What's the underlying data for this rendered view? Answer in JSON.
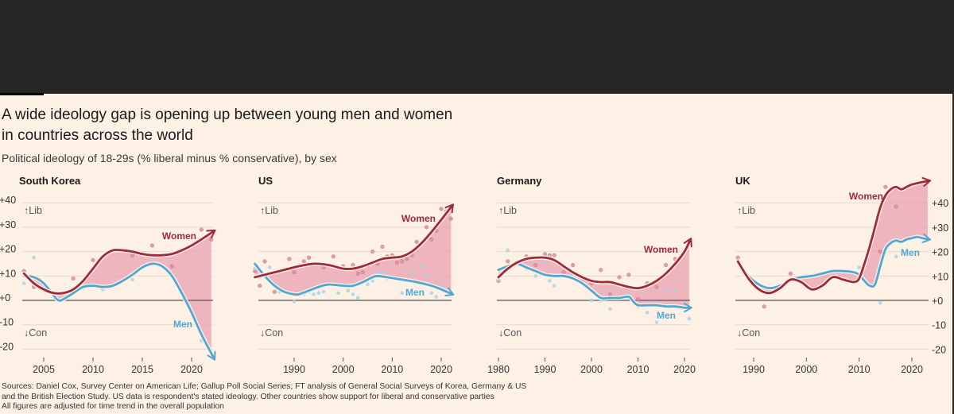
{
  "header": {
    "title_line1": "A wide ideology gap is opening up between young men and women",
    "title_line2": "in countries across the world",
    "subtitle": "Political ideology of 18-29s (% liberal minus % conservative), by sex"
  },
  "footnote": {
    "line1": "Sources: Daniel Cox, Survey Center on American Life; Gallup Poll Social Series; FT analysis of General Social Surveys of Korea, Germany & US",
    "line2": "and the British Election Study. US data is respondent's stated ideology. Other countries show support for liberal and conservative parties",
    "line3": "All figures are adjusted for time trend in the overall population"
  },
  "colors": {
    "women": "#9e2a3b",
    "men": "#4fa8d1",
    "gap_fill": "#eaa0b2",
    "background": "#fdf1e6",
    "women_dot": "#d8909a",
    "men_dot": "#a9d2e2"
  },
  "chart_data": [
    {
      "type": "line",
      "title": "South Korea",
      "ylabel": "% liberal minus % conservative",
      "ylim": [
        -20,
        40
      ],
      "y_ticks": [
        "+40",
        "+30",
        "+20",
        "+10",
        "+0",
        "-10",
        "-20"
      ],
      "y_tick_values": [
        40,
        30,
        20,
        10,
        0,
        -10,
        -20
      ],
      "y_axis_side": "left",
      "x_ticks": [
        "2005",
        "2010",
        "2015",
        "2020"
      ],
      "x_tick_values": [
        2005,
        2010,
        2015,
        2020
      ],
      "xlim": [
        2003,
        2022
      ],
      "annotations": {
        "up": "↑Lib",
        "down": "↓Con"
      },
      "series": [
        {
          "name": "Women",
          "label": "Women",
          "x": [
            2003,
            2004,
            2005,
            2006,
            2007,
            2008,
            2009,
            2010,
            2011,
            2012,
            2013,
            2014,
            2015,
            2016,
            2017,
            2018,
            2019,
            2020,
            2021,
            2022.3
          ],
          "values": [
            11,
            7,
            4.5,
            3,
            3,
            4.5,
            8,
            13,
            18,
            20.5,
            20.5,
            20,
            19,
            18.5,
            18.5,
            19,
            20.5,
            22.5,
            25,
            28.5
          ]
        },
        {
          "name": "Men",
          "label": "Men",
          "x": [
            2003,
            2004,
            2005,
            2006,
            2006.5,
            2007,
            2008,
            2009,
            2010,
            2011,
            2012,
            2013,
            2014,
            2015,
            2016,
            2017,
            2018,
            2019,
            2020,
            2021,
            2022.3
          ],
          "values": [
            10,
            9.5,
            7,
            2,
            0,
            0.5,
            3,
            5.5,
            6,
            5.5,
            6,
            8,
            10.5,
            13.5,
            15,
            14,
            10,
            3,
            -5,
            -14,
            -24
          ]
        }
      ],
      "scatter": {
        "women": [
          [
            2003,
            12
          ],
          [
            2004,
            5.5
          ],
          [
            2005,
            7
          ],
          [
            2008,
            9
          ],
          [
            2010,
            16.5
          ],
          [
            2014,
            18.5
          ],
          [
            2016,
            22.5
          ],
          [
            2018,
            14
          ],
          [
            2021,
            29
          ],
          [
            2022,
            25
          ]
        ],
        "men": [
          [
            2003,
            7
          ],
          [
            2004,
            17.5
          ],
          [
            2009,
            5
          ],
          [
            2010,
            6.5
          ],
          [
            2011,
            4.5
          ],
          [
            2014,
            8.5
          ],
          [
            2016,
            17.5
          ],
          [
            2021,
            -16.5
          ],
          [
            2022,
            -21.5
          ]
        ]
      }
    },
    {
      "type": "line",
      "title": "US",
      "ylim": [
        -20,
        40
      ],
      "x_ticks": [
        "1990",
        "2000",
        "2010",
        "2020"
      ],
      "x_tick_values": [
        1990,
        2000,
        2010,
        2020
      ],
      "xlim": [
        1982,
        2022
      ],
      "annotations": {
        "up": "↑Lib",
        "down": "↓Con"
      },
      "series": [
        {
          "name": "Women",
          "label": "Women",
          "x": [
            1982,
            1985,
            1988,
            1991,
            1994,
            1997,
            2000,
            2002,
            2004,
            2006,
            2008,
            2010,
            2012,
            2014,
            2016,
            2018,
            2020,
            2022.3
          ],
          "values": [
            9.5,
            11,
            12.5,
            14,
            15,
            14.5,
            13,
            13,
            14,
            15.5,
            17,
            17.5,
            18,
            20,
            23.5,
            28,
            33,
            39
          ]
        },
        {
          "name": "Men",
          "label": "Men",
          "x": [
            1982,
            1984,
            1986,
            1988,
            1990,
            1991,
            1993,
            1995,
            1997,
            2000,
            2002,
            2004,
            2006,
            2007,
            2009,
            2012,
            2015,
            2018,
            2020,
            2022.3
          ],
          "values": [
            15,
            10,
            6,
            3.5,
            2.5,
            2.5,
            4,
            5.5,
            6.5,
            6,
            6,
            7.5,
            9.5,
            10,
            9.5,
            8.5,
            7.5,
            6,
            4.5,
            2.5
          ]
        }
      ],
      "scatter": {
        "women": [
          [
            1982,
            12
          ],
          [
            1983,
            6
          ],
          [
            1984,
            16
          ],
          [
            1986,
            3.5
          ],
          [
            1989,
            17
          ],
          [
            1990,
            11.5
          ],
          [
            1992,
            16
          ],
          [
            1993,
            17.5
          ],
          [
            1995,
            15
          ],
          [
            1996,
            13.5
          ],
          [
            1998,
            18
          ],
          [
            2000,
            14
          ],
          [
            2002,
            14.5
          ],
          [
            2003,
            11
          ],
          [
            2004,
            11.5
          ],
          [
            2005,
            14.5
          ],
          [
            2006,
            20
          ],
          [
            2007,
            15
          ],
          [
            2008,
            22
          ],
          [
            2009,
            18
          ],
          [
            2010,
            18.5
          ],
          [
            2011,
            15.5
          ],
          [
            2012,
            16
          ],
          [
            2013,
            17
          ],
          [
            2014,
            18.5
          ],
          [
            2015,
            24
          ],
          [
            2017,
            30
          ],
          [
            2018,
            25
          ],
          [
            2019,
            28.5
          ],
          [
            2020,
            37.5
          ],
          [
            2021,
            36.5
          ],
          [
            2022,
            33.5
          ]
        ],
        "men": [
          [
            1982,
            13
          ],
          [
            1985,
            13.5
          ],
          [
            1987,
            3.5
          ],
          [
            1990,
            -0.5
          ],
          [
            1992,
            2.5
          ],
          [
            1993,
            3.5
          ],
          [
            1994,
            2.5
          ],
          [
            1995,
            3
          ],
          [
            1996,
            3.5
          ],
          [
            1999,
            3
          ],
          [
            2001,
            4
          ],
          [
            2002,
            2.5
          ],
          [
            2003,
            1
          ],
          [
            2005,
            6.5
          ],
          [
            2006,
            8
          ],
          [
            2007,
            11.5
          ],
          [
            2008,
            12
          ],
          [
            2009,
            9
          ],
          [
            2012,
            3
          ],
          [
            2014,
            11
          ],
          [
            2016,
            14
          ],
          [
            2017,
            10
          ],
          [
            2018,
            3
          ],
          [
            2019,
            1.5
          ],
          [
            2020,
            6
          ]
        ]
      }
    },
    {
      "type": "line",
      "title": "Germany",
      "ylim": [
        -20,
        40
      ],
      "x_ticks": [
        "1980",
        "1990",
        "2000",
        "2010",
        "2020"
      ],
      "x_tick_values": [
        1980,
        1990,
        2000,
        2010,
        2020
      ],
      "xlim": [
        1980,
        2021
      ],
      "annotations": {
        "up": "↑Lib",
        "down": "↓Con"
      },
      "series": [
        {
          "name": "Women",
          "label": "Women",
          "x": [
            1980,
            1982,
            1984,
            1986,
            1988,
            1990,
            1992,
            1994,
            1996,
            1998,
            2000,
            2002,
            2004,
            2006,
            2008,
            2010,
            2012,
            2014,
            2016,
            2018,
            2020,
            2021.3
          ],
          "values": [
            9.5,
            13,
            15.5,
            17,
            17.5,
            17.5,
            16.5,
            14,
            11.5,
            9.5,
            8,
            7.5,
            7.5,
            6.5,
            5.5,
            5,
            6,
            8,
            11,
            15,
            20,
            25
          ]
        },
        {
          "name": "Men",
          "label": "Men",
          "x": [
            1980,
            1982,
            1984,
            1986,
            1988,
            1990,
            1992,
            1994,
            1996,
            1998,
            2000,
            2002,
            2004,
            2006,
            2008,
            2009,
            2010,
            2012,
            2014,
            2016,
            2018,
            2020,
            2021.3
          ],
          "values": [
            12.5,
            14,
            15,
            13.5,
            12,
            10.5,
            10,
            10,
            9,
            7,
            4,
            1,
            1,
            1,
            1.5,
            -0.5,
            -2,
            -2,
            -2,
            -2.5,
            -2.5,
            -3,
            -3
          ]
        }
      ],
      "scatter": {
        "women": [
          [
            1980,
            8
          ],
          [
            1982,
            16
          ],
          [
            1986,
            18
          ],
          [
            1988,
            14.5
          ],
          [
            1990,
            19
          ],
          [
            1991,
            18.5
          ],
          [
            1992,
            18.5
          ],
          [
            1994,
            11.5
          ],
          [
            1996,
            14.5
          ],
          [
            1998,
            8
          ],
          [
            2000,
            7
          ],
          [
            2002,
            12.5
          ],
          [
            2004,
            2.5
          ],
          [
            2006,
            9.5
          ],
          [
            2008,
            10.5
          ],
          [
            2010,
            0.5
          ],
          [
            2012,
            7
          ],
          [
            2014,
            5.5
          ],
          [
            2016,
            14.5
          ],
          [
            2018,
            17
          ]
        ],
        "men": [
          [
            1980,
            8.5
          ],
          [
            1982,
            20.5
          ],
          [
            1986,
            13
          ],
          [
            1988,
            10
          ],
          [
            1990,
            16
          ],
          [
            1991,
            8
          ],
          [
            1992,
            6
          ],
          [
            1996,
            10.5
          ],
          [
            2000,
            0
          ],
          [
            2002,
            0
          ],
          [
            2004,
            -3.5
          ],
          [
            2008,
            2.5
          ],
          [
            2010,
            -2.5
          ],
          [
            2012,
            -5
          ],
          [
            2014,
            -9
          ],
          [
            2016,
            4
          ],
          [
            2018,
            4
          ],
          [
            2021,
            -7.5
          ]
        ]
      }
    },
    {
      "type": "line",
      "title": "UK",
      "ylim": [
        -20,
        40
      ],
      "y_ticks": [
        "+40",
        "+30",
        "+20",
        "+10",
        "+0",
        "-10",
        "-20"
      ],
      "y_tick_values": [
        40,
        30,
        20,
        10,
        0,
        -10,
        -20
      ],
      "y_axis_side": "right",
      "x_ticks": [
        "1990",
        "2000",
        "2010",
        "2020"
      ],
      "x_tick_values": [
        1990,
        2000,
        2010,
        2020
      ],
      "xlim": [
        1987,
        2023
      ],
      "annotations": {
        "up": "↑Lib",
        "down": "↓Con"
      },
      "series": [
        {
          "name": "Women",
          "label": "Women",
          "x": [
            1987,
            1989,
            1991,
            1993,
            1995,
            1997,
            1999,
            2001,
            2003,
            2005,
            2007,
            2009,
            2010,
            2011,
            2012,
            2013,
            2014,
            2015,
            2016,
            2017,
            2018,
            2019,
            2020,
            2021,
            2022,
            2023.3
          ],
          "values": [
            16,
            9,
            4.5,
            3,
            5,
            8.5,
            7.5,
            4.5,
            6,
            9.5,
            8.5,
            7.5,
            9,
            15,
            22,
            30,
            38,
            43,
            45.5,
            46.5,
            45.5,
            46.5,
            47.5,
            48,
            48.5,
            49
          ]
        },
        {
          "name": "Men",
          "label": "Men",
          "x": [
            1987,
            1989,
            1991,
            1993,
            1995,
            1997,
            1999,
            2001,
            2003,
            2005,
            2007,
            2009,
            2010,
            2011,
            2012,
            2013,
            2014,
            2015,
            2016,
            2017,
            2018,
            2019,
            2020,
            2021,
            2022,
            2023.3
          ],
          "values": [
            16,
            10,
            6.5,
            5,
            6,
            8.5,
            9.5,
            10,
            11,
            12,
            12,
            11.5,
            10.5,
            8,
            6,
            6.5,
            14,
            21,
            23.5,
            24.5,
            24,
            25,
            25.5,
            26,
            25.5,
            25
          ]
        }
      ],
      "scatter": {
        "women": [
          [
            1987,
            17.5
          ],
          [
            1992,
            -2.5
          ],
          [
            1997,
            11
          ],
          [
            2014,
            20
          ],
          [
            2015,
            46.5
          ],
          [
            2017,
            38.5
          ],
          [
            2019,
            46.5
          ]
        ],
        "men": [
          [
            2010,
            13.5
          ],
          [
            2014,
            -1
          ],
          [
            2015,
            21.5
          ],
          [
            2017,
            18
          ],
          [
            2019,
            25
          ]
        ]
      }
    }
  ]
}
